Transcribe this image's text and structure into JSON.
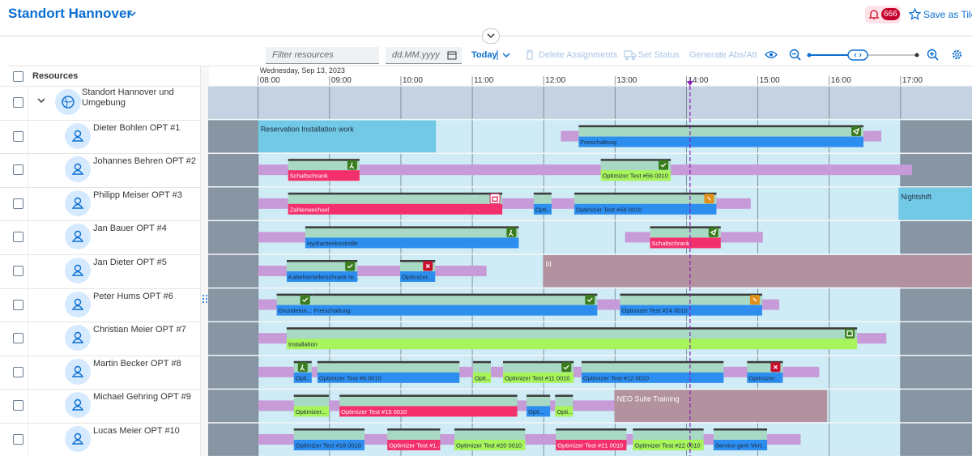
{
  "header": {
    "title": "Standort Hannover",
    "notifications": 666,
    "save_tile": "Save as Tile"
  },
  "toolbar": {
    "filter_placeholder": "Filter resources",
    "date_placeholder": "dd.MM.yyyy",
    "today": "Today",
    "delete": "Delete Assignments",
    "set_status": "Set Status",
    "generate": "Generate Abs/Att"
  },
  "resources": {
    "header": "Resources",
    "group": "Standort Hannover und Umgebung",
    "rows": [
      "Dieter Bohlen OPT #1",
      "Johannes Behren OPT #2",
      "Philipp Meiser OPT #3",
      "Jan Bauer OPT #4",
      "Jan Dieter OPT #5",
      "Peter Hums OPT #6",
      "Christian Meier OPT #7",
      "Martin Becker OPT #8",
      "Michael Gehring OPT #9",
      "Lucas Meier OPT #10"
    ]
  },
  "timeline": {
    "date": "Wednesday, Sep 13, 2023",
    "xlim": [
      7.3,
      18.0
    ],
    "ticks": [
      {
        "value": 8,
        "label": "08:00"
      },
      {
        "value": 9,
        "label": "09:00"
      },
      {
        "value": 10,
        "label": "10:00"
      },
      {
        "value": 11,
        "label": "11:00"
      },
      {
        "value": 12,
        "label": "12:00"
      },
      {
        "value": 13,
        "label": "13:00"
      },
      {
        "value": 14,
        "label": "14:00"
      },
      {
        "value": 15,
        "label": "15:00"
      },
      {
        "value": 16,
        "label": "16:00"
      },
      {
        "value": 17,
        "label": "17:00"
      }
    ],
    "workday": [
      8,
      17
    ],
    "now": 14.05,
    "colors": {
      "blue": "#2d8ef0",
      "red": "#f4306c",
      "green": "#a7f45b",
      "mint": "#a8d9c5",
      "travel": "#c69bd8",
      "off": "#8895a3",
      "work": "#cfebf5",
      "group": "#c4d2e2",
      "sky": "#72c9e6",
      "mauve": "#b2929f",
      "now": "#8b1fb4"
    },
    "rows": [
      {
        "travel": [
          [
            12.24,
            12.49
          ],
          [
            16.48,
            16.73
          ]
        ],
        "absences": [
          {
            "label": "Reservation Installation work",
            "start": 8.0,
            "end": 10.49,
            "color": "sky"
          }
        ],
        "blocks": [
          {
            "label": "Freischaltung",
            "start": 12.49,
            "end": 16.48,
            "color": "blue",
            "icon": "send"
          }
        ]
      },
      {
        "travel": [
          [
            8.0,
            17.16
          ]
        ],
        "blocks": [
          {
            "label": "Schaltschrank",
            "start": 8.42,
            "end": 9.42,
            "color": "red",
            "icon": "walk"
          },
          {
            "label": "Optimizer Test #56 0010",
            "start": 12.8,
            "end": 13.78,
            "color": "green",
            "icon": "check"
          }
        ]
      },
      {
        "travel": [
          [
            8.0,
            14.9
          ]
        ],
        "absences": [
          {
            "label": "Nightshift",
            "start": 16.97,
            "end": 18.0,
            "color": "sky"
          }
        ],
        "blocks": [
          {
            "label": "Zahlerwechsel",
            "start": 8.42,
            "end": 11.42,
            "color": "red",
            "icon": "calendar"
          },
          {
            "label": "Opti...",
            "start": 11.86,
            "end": 12.11,
            "color": "blue"
          },
          {
            "label": "Optimizer Test #58 0010",
            "start": 12.43,
            "end": 14.42,
            "color": "blue",
            "icon": "warn"
          }
        ]
      },
      {
        "travel": [
          [
            8.0,
            11.65
          ],
          [
            13.14,
            15.07
          ]
        ],
        "blocks": [
          {
            "label": "Hydrantenkontrolle",
            "start": 8.66,
            "end": 11.65,
            "color": "blue",
            "icon": "walk"
          },
          {
            "label": "Schaltschrank",
            "start": 13.49,
            "end": 14.48,
            "color": "red",
            "icon": "send"
          }
        ]
      },
      {
        "travel": [
          [
            8.0,
            11.2
          ]
        ],
        "absences": [
          {
            "label": "III",
            "start": 11.99,
            "end": 18.0,
            "color": "mauve"
          }
        ],
        "blocks": [
          {
            "label": "Kabelverteilerschrank re...",
            "start": 8.4,
            "end": 9.39,
            "color": "blue",
            "icon": "check"
          },
          {
            "label": "Optimizer...",
            "start": 9.99,
            "end": 10.48,
            "color": "blue",
            "icon": "cancel"
          }
        ]
      },
      {
        "travel": [
          [
            8.0,
            15.3
          ]
        ],
        "blocks": [
          {
            "label": "Grundeinri...",
            "start": 8.26,
            "end": 8.76,
            "color": "blue",
            "icon": "check"
          },
          {
            "label": "Freischaltung",
            "start": 8.76,
            "end": 12.75,
            "color": "blue",
            "icon": "check"
          },
          {
            "label": "Optimizer Test #24 0010",
            "start": 13.07,
            "end": 15.06,
            "color": "blue",
            "icon": "warn"
          }
        ]
      },
      {
        "travel": [
          [
            8.0,
            16.8
          ]
        ],
        "blocks": [
          {
            "label": "Installation",
            "start": 8.4,
            "end": 16.39,
            "color": "green",
            "icon": "square"
          }
        ]
      },
      {
        "travel": [
          [
            8.0,
            15.86
          ]
        ],
        "blocks": [
          {
            "label": "Opti...",
            "start": 8.5,
            "end": 8.75,
            "color": "blue",
            "icon": "walk"
          },
          {
            "label": "Optimizer Test #9 0010",
            "start": 8.83,
            "end": 10.82,
            "color": "blue"
          },
          {
            "label": "Opti...",
            "start": 11.01,
            "end": 11.26,
            "color": "green"
          },
          {
            "label": "Optimizer Test #11 0010",
            "start": 11.43,
            "end": 12.42,
            "color": "green",
            "icon": "check"
          },
          {
            "label": "Optimizer Test #12 0010",
            "start": 12.53,
            "end": 14.52,
            "color": "blue"
          },
          {
            "label": "Optimizer...",
            "start": 14.85,
            "end": 15.35,
            "color": "blue",
            "icon": "cancel"
          }
        ]
      },
      {
        "travel": [
          [
            8.0,
            12.99
          ]
        ],
        "absences": [
          {
            "label": "NEO Suite Training",
            "start": 12.99,
            "end": 15.97,
            "color": "mauve"
          }
        ],
        "blocks": [
          {
            "label": "Optimizer...",
            "start": 8.5,
            "end": 8.99,
            "color": "green"
          },
          {
            "label": "Optimizer Test #15 0010",
            "start": 9.14,
            "end": 11.63,
            "color": "red"
          },
          {
            "label": "Opti...",
            "start": 11.76,
            "end": 12.09,
            "color": "blue"
          },
          {
            "label": "Opti...",
            "start": 12.16,
            "end": 12.41,
            "color": "green"
          }
        ]
      },
      {
        "travel": [
          [
            8.0,
            15.6
          ]
        ],
        "blocks": [
          {
            "label": "Optimizer Test #18 0010",
            "start": 8.5,
            "end": 9.49,
            "color": "blue"
          },
          {
            "label": "Optimizer Test #1...",
            "start": 9.81,
            "end": 10.55,
            "color": "red"
          },
          {
            "label": "Optimizer Test #20 0010",
            "start": 10.75,
            "end": 11.74,
            "color": "green"
          },
          {
            "label": "Optimizer Test #21 0010",
            "start": 12.17,
            "end": 13.16,
            "color": "red"
          },
          {
            "label": "Optimizer Test #22 0010",
            "start": 13.25,
            "end": 14.24,
            "color": "green"
          },
          {
            "label": "Service gem Vert...",
            "start": 14.38,
            "end": 15.13,
            "color": "blue"
          }
        ]
      }
    ]
  }
}
